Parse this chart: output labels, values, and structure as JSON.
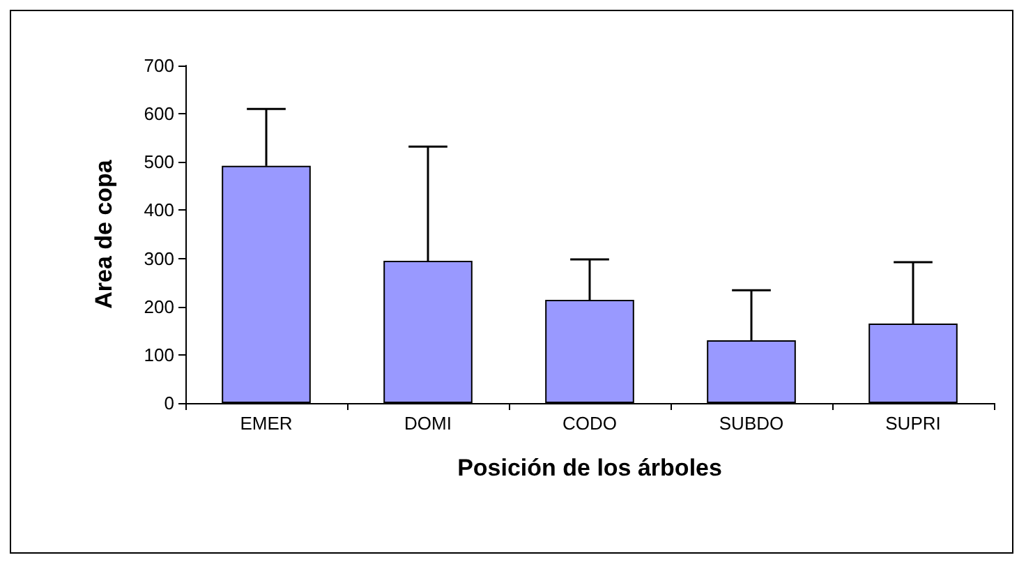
{
  "chart_data": {
    "type": "bar",
    "xlabel": "Posición de los árboles",
    "ylabel": "Area de copa",
    "categories": [
      "EMER",
      "DOMI",
      "CODO",
      "SUBDO",
      "SUPRI"
    ],
    "values": [
      492,
      295,
      214,
      130,
      165
    ],
    "errors": [
      [
        492,
        610
      ],
      [
        295,
        532
      ],
      [
        214,
        298
      ],
      [
        130,
        234
      ],
      [
        165,
        292
      ]
    ],
    "color": "#9999ff",
    "ylim": [
      0,
      700
    ],
    "yticks": [
      0,
      100,
      200,
      300,
      400,
      500,
      600,
      700
    ],
    "grid": false
  }
}
